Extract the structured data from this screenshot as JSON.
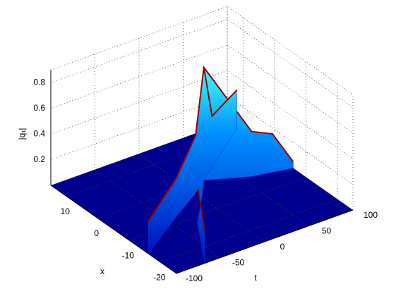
{
  "chart_data": {
    "type": "surface3d",
    "x_label": "x",
    "t_label": "t",
    "z_label": "|q₁|",
    "tlim": [
      -100,
      100
    ],
    "tticks": [
      -100,
      -50,
      0,
      50,
      100
    ],
    "xlim": [
      -25,
      15
    ],
    "xticks": [
      -20,
      -10,
      0,
      10
    ],
    "zlim": [
      0,
      0.9
    ],
    "zticks": [
      0.2,
      0.4,
      0.6,
      0.8
    ],
    "grid": true,
    "floor_color": "#00008f",
    "ridges": [
      {
        "t": [
          -68,
          -30,
          0,
          20,
          60,
          80,
          100
        ],
        "x": [
          -25,
          -12,
          -5,
          0,
          -4,
          -5,
          -6
        ],
        "z": [
          0.25,
          0.3,
          0.5,
          0.88,
          0.35,
          0.3,
          0.05
        ]
      },
      {
        "t": [
          -100,
          -40,
          0,
          20,
          40,
          100
        ],
        "x": [
          -16,
          -8,
          -3,
          0,
          3,
          12
        ],
        "z": [
          0.25,
          0.3,
          0.45,
          0.88,
          0.4,
          0.3
        ]
      }
    ]
  }
}
